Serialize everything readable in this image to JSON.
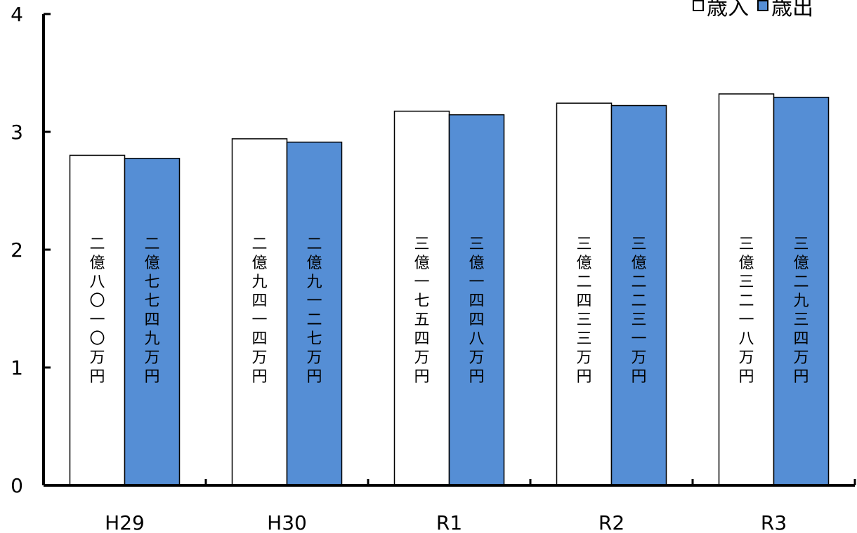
{
  "chart_data": {
    "type": "bar",
    "categories": [
      "H29",
      "H30",
      "R1",
      "R2",
      "R3"
    ],
    "series": [
      {
        "name": "歳入",
        "color": "#ffffff",
        "values": [
          2.801,
          2.941,
          3.1754,
          3.2433,
          3.3218
        ],
        "labels": [
          "二億八〇一〇万円",
          "二億九四一四万円",
          "三億一七五四万円",
          "三億二四三三万円",
          "三億三二一八万円"
        ]
      },
      {
        "name": "歳出",
        "color": "#558ed5",
        "values": [
          2.7749,
          2.9127,
          3.1448,
          3.2231,
          3.2934
        ],
        "labels": [
          "二億七七四九万円",
          "二億九一二七万円",
          "三億一四四八万円",
          "三億二二三一万円",
          "三億二九三四万円"
        ]
      }
    ],
    "y_ticks": [
      "0",
      "1",
      "2",
      "3",
      "4"
    ],
    "ylim": [
      0,
      4
    ],
    "grid": false,
    "legend_position": "top-right",
    "title": "",
    "xlabel": "",
    "ylabel": ""
  }
}
